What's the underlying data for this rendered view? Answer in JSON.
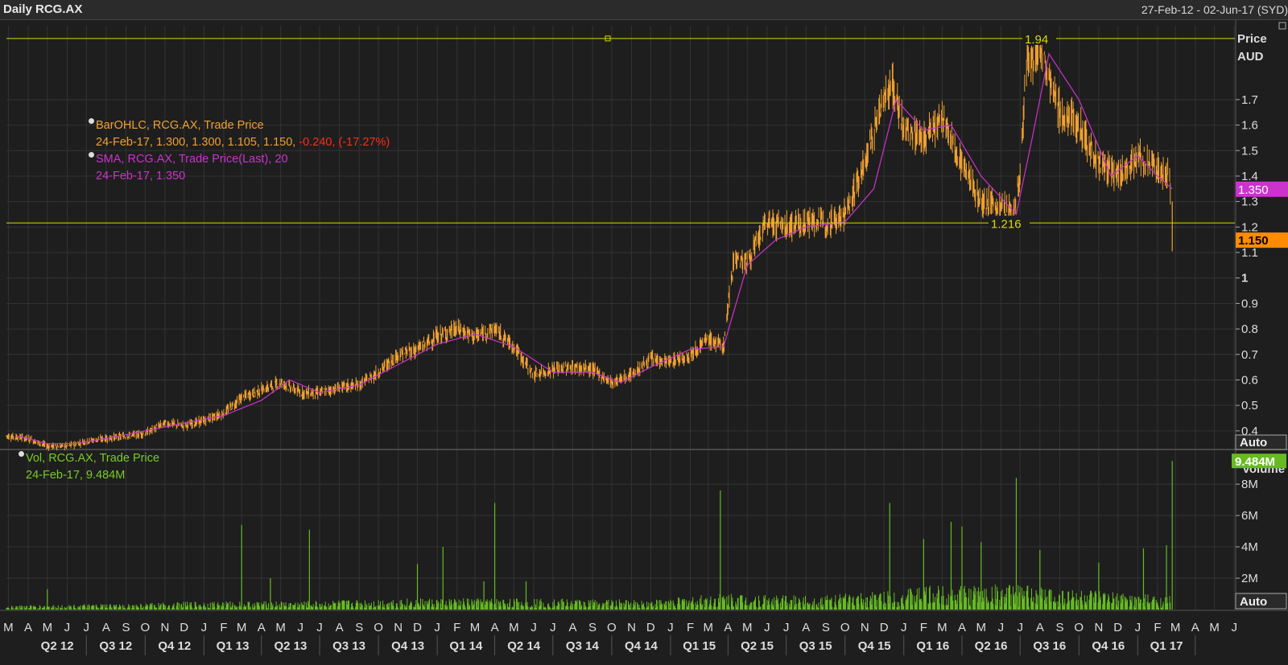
{
  "header": {
    "title": "Daily RCG.AX",
    "date_range": "27-Feb-12 - 02-Jun-17 (SYD)"
  },
  "legend": {
    "ohlc": {
      "name": "BarOHLC, RCG.AX, Trade Price",
      "values": "24-Feb-17, 1.300, 1.300, 1.105, 1.150,",
      "change": "-0.240, (-17.27%)"
    },
    "sma": {
      "name": "SMA, RCG.AX, Trade Price(Last),  20",
      "values": "24-Feb-17, 1.350"
    },
    "vol": {
      "name": "Vol, RCG.AX, Trade Price",
      "values": "24-Feb-17, 9.484M"
    }
  },
  "colors": {
    "background": "#1e1e1e",
    "grid": "#333333",
    "ohlc": "#f0a030",
    "sma": "#cc33cc",
    "volume": "#66bb22",
    "lines": "#d8d800",
    "negative": "#ff2a1a",
    "price_badge": "#ff8c00",
    "sma_badge": "#cc33cc",
    "volume_badge": "#66bb22"
  },
  "chart_data": [
    {
      "type": "line",
      "panel": "price",
      "ylabel": "Price AUD",
      "ylabel_lines": [
        "Price",
        "AUD"
      ],
      "ylim": [
        0.33,
        1.99
      ],
      "yticks": [
        0.4,
        0.5,
        0.6,
        0.7,
        0.8,
        0.9,
        1,
        1.1,
        1.2,
        1.3,
        1.4,
        1.5,
        1.6,
        1.7
      ],
      "ytick_labels": [
        "0.4",
        "0.5",
        "0.6",
        "0.7",
        "0.8",
        "0.9",
        "1",
        "1.1",
        "1.2",
        "1.3",
        "1.4",
        "1.5",
        "1.6",
        "1.7"
      ],
      "scale_button": "Auto",
      "series": [
        {
          "name": "BarOHLC, RCG.AX, Trade Price",
          "style": "ohlc",
          "x": [
            "2012-02-27",
            "2012-04-01",
            "2012-05-01",
            "2012-06-01",
            "2012-07-01",
            "2012-08-01",
            "2012-09-01",
            "2012-10-01",
            "2012-11-01",
            "2012-12-01",
            "2013-01-01",
            "2013-02-01",
            "2013-03-01",
            "2013-04-01",
            "2013-05-01",
            "2013-06-01",
            "2013-07-01",
            "2013-08-01",
            "2013-09-01",
            "2013-10-01",
            "2013-11-01",
            "2013-12-01",
            "2014-01-01",
            "2014-02-01",
            "2014-03-01",
            "2014-04-01",
            "2014-05-01",
            "2014-06-01",
            "2014-07-01",
            "2014-08-01",
            "2014-09-01",
            "2014-10-01",
            "2014-11-01",
            "2014-12-01",
            "2015-01-01",
            "2015-02-01",
            "2015-03-01",
            "2015-03-25",
            "2015-04-10",
            "2015-05-01",
            "2015-06-01",
            "2015-07-01",
            "2015-08-01",
            "2015-09-01",
            "2015-10-01",
            "2015-11-01",
            "2015-12-01",
            "2015-12-15",
            "2016-01-01",
            "2016-02-01",
            "2016-03-01",
            "2016-04-01",
            "2016-05-01",
            "2016-06-01",
            "2016-06-20",
            "2016-07-01",
            "2016-07-10",
            "2016-08-01",
            "2016-09-01",
            "2016-10-01",
            "2016-11-01",
            "2016-12-01",
            "2017-01-01",
            "2017-02-01",
            "2017-02-20",
            "2017-02-24"
          ],
          "close": [
            0.38,
            0.37,
            0.34,
            0.34,
            0.36,
            0.37,
            0.38,
            0.39,
            0.43,
            0.42,
            0.44,
            0.47,
            0.53,
            0.56,
            0.59,
            0.55,
            0.55,
            0.57,
            0.58,
            0.63,
            0.7,
            0.72,
            0.77,
            0.8,
            0.77,
            0.8,
            0.73,
            0.62,
            0.64,
            0.65,
            0.64,
            0.59,
            0.62,
            0.68,
            0.67,
            0.7,
            0.76,
            0.73,
            1.08,
            1.06,
            1.22,
            1.2,
            1.22,
            1.22,
            1.25,
            1.45,
            1.72,
            1.75,
            1.58,
            1.55,
            1.62,
            1.45,
            1.3,
            1.28,
            1.25,
            1.4,
            1.82,
            1.9,
            1.65,
            1.6,
            1.45,
            1.4,
            1.48,
            1.43,
            1.39,
            1.15
          ],
          "high_last": 1.3,
          "low_last": 1.105,
          "open_last": 1.3,
          "last": 1.15
        },
        {
          "name": "SMA, RCG.AX, Trade Price(Last),  20",
          "style": "line",
          "x": [
            "2012-03-15",
            "2012-05-01",
            "2012-06-15",
            "2012-08-01",
            "2012-10-01",
            "2012-12-01",
            "2013-02-01",
            "2013-04-01",
            "2013-05-15",
            "2013-07-01",
            "2013-09-01",
            "2013-11-01",
            "2014-01-01",
            "2014-03-01",
            "2014-05-01",
            "2014-07-01",
            "2014-09-01",
            "2014-10-15",
            "2014-12-01",
            "2015-02-01",
            "2015-03-25",
            "2015-05-01",
            "2015-06-15",
            "2015-08-01",
            "2015-10-01",
            "2015-11-15",
            "2015-12-20",
            "2016-02-01",
            "2016-03-15",
            "2016-05-01",
            "2016-06-25",
            "2016-07-20",
            "2016-08-15",
            "2016-10-01",
            "2016-11-20",
            "2017-01-01",
            "2017-02-01",
            "2017-02-24"
          ],
          "y": [
            0.38,
            0.35,
            0.35,
            0.37,
            0.4,
            0.43,
            0.46,
            0.52,
            0.6,
            0.55,
            0.58,
            0.66,
            0.74,
            0.78,
            0.73,
            0.63,
            0.63,
            0.59,
            0.65,
            0.72,
            0.73,
            1.05,
            1.15,
            1.2,
            1.22,
            1.35,
            1.7,
            1.58,
            1.6,
            1.4,
            1.25,
            1.55,
            1.88,
            1.7,
            1.4,
            1.48,
            1.4,
            1.35
          ]
        }
      ],
      "hlines": [
        {
          "value": 1.94,
          "label": "1.94"
        },
        {
          "value": 1.216,
          "label": "1.216"
        }
      ],
      "badges": [
        {
          "value": 1.35,
          "label": "1.350"
        },
        {
          "value": 1.15,
          "label": "1.150"
        }
      ]
    },
    {
      "type": "bar",
      "panel": "volume",
      "ylabel": "Volume",
      "ylim": [
        0,
        9.7
      ],
      "yticks": [
        2,
        4,
        6,
        8
      ],
      "ytick_labels": [
        "2M",
        "4M",
        "6M",
        "8M"
      ],
      "scale_button": "Auto",
      "series": [
        {
          "name": "Vol, RCG.AX, Trade Price",
          "unit": "M",
          "typical": [
            [
              "2012-02-27",
              0.15
            ],
            [
              "2012-09-01",
              0.2
            ],
            [
              "2013-01-01",
              0.3
            ],
            [
              "2013-06-01",
              0.3
            ],
            [
              "2013-11-01",
              0.4
            ],
            [
              "2014-06-01",
              0.4
            ],
            [
              "2014-12-01",
              0.35
            ],
            [
              "2015-04-01",
              0.6
            ],
            [
              "2015-08-01",
              0.5
            ],
            [
              "2015-11-01",
              0.6
            ],
            [
              "2016-03-01",
              0.9
            ],
            [
              "2016-06-01",
              0.9
            ],
            [
              "2016-09-01",
              0.8
            ],
            [
              "2016-12-01",
              0.6
            ],
            [
              "2017-02-24",
              0.5
            ]
          ],
          "spikes": [
            [
              "2012-05-01",
              1.3
            ],
            [
              "2013-03-01",
              5.4
            ],
            [
              "2013-04-15",
              2.0
            ],
            [
              "2013-06-15",
              5.1
            ],
            [
              "2013-12-01",
              2.9
            ],
            [
              "2014-01-10",
              4.0
            ],
            [
              "2014-03-15",
              1.8
            ],
            [
              "2014-04-01",
              6.8
            ],
            [
              "2014-05-20",
              1.8
            ],
            [
              "2015-03-20",
              7.6
            ],
            [
              "2015-12-10",
              6.8
            ],
            [
              "2016-02-01",
              4.5
            ],
            [
              "2016-03-15",
              5.6
            ],
            [
              "2016-04-01",
              5.3
            ],
            [
              "2016-05-01",
              4.3
            ],
            [
              "2016-06-25",
              8.4
            ],
            [
              "2016-08-01",
              3.8
            ],
            [
              "2016-11-01",
              3.0
            ],
            [
              "2017-01-10",
              3.9
            ],
            [
              "2017-02-15",
              4.1
            ],
            [
              "2017-02-24",
              9.484
            ]
          ],
          "last": 9.484
        }
      ],
      "badge": {
        "value": 9.484,
        "label": "9.484M"
      }
    }
  ],
  "xaxis": {
    "start": "2012-02-27",
    "end": "2017-06-02",
    "month_letters": [
      "M",
      "A",
      "M",
      "J",
      "J",
      "A",
      "S",
      "O",
      "N",
      "D",
      "J",
      "F",
      "M",
      "A",
      "M",
      "J",
      "J",
      "A",
      "S",
      "O",
      "N",
      "D",
      "J",
      "F",
      "M",
      "A",
      "M",
      "J",
      "J",
      "A",
      "S",
      "O",
      "N",
      "D",
      "J",
      "F",
      "M",
      "A",
      "M",
      "J",
      "J",
      "A",
      "S",
      "O",
      "N",
      "D",
      "J",
      "F",
      "M",
      "A",
      "M",
      "J",
      "J",
      "A",
      "S",
      "O",
      "N",
      "D",
      "J",
      "F",
      "M",
      "A",
      "M",
      "J"
    ],
    "quarters": [
      "Q2 12",
      "Q3 12",
      "Q4 12",
      "Q1 13",
      "Q2 13",
      "Q3 13",
      "Q4 13",
      "Q1 14",
      "Q2 14",
      "Q3 14",
      "Q4 14",
      "Q1 15",
      "Q2 15",
      "Q3 15",
      "Q4 15",
      "Q1 16",
      "Q2 16",
      "Q3 16",
      "Q4 16",
      "Q1 17"
    ]
  }
}
